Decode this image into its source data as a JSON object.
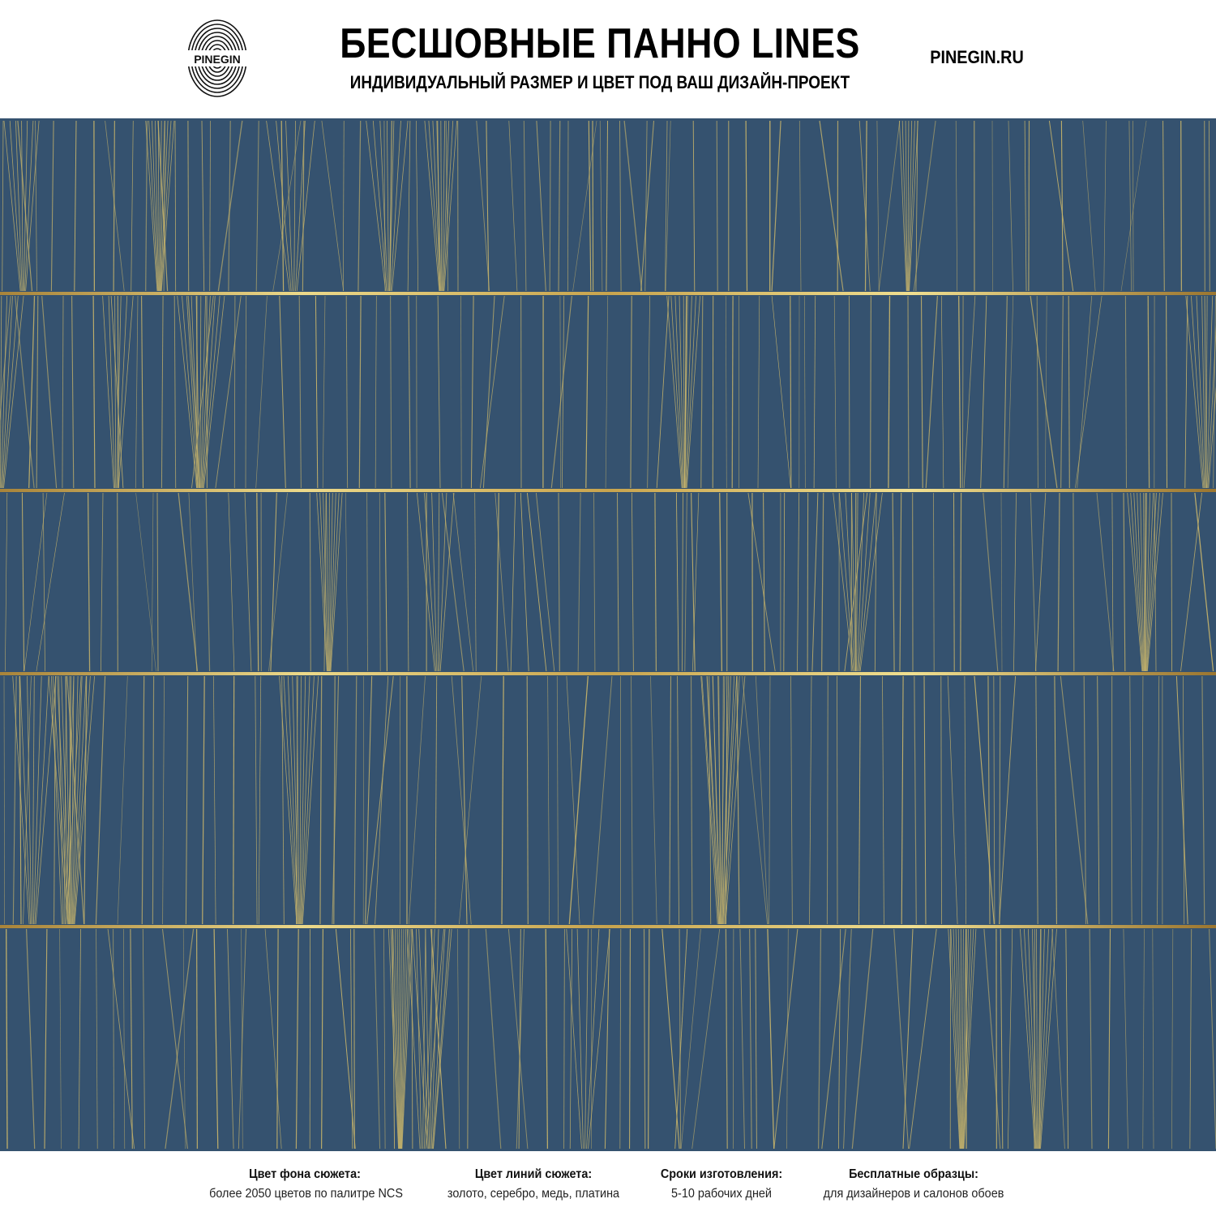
{
  "header": {
    "logo_text": "PINEGIN",
    "title": "БЕСШОВНЫЕ ПАННО LINES",
    "subtitle": "ИНДИВИДУАЛЬНЫЙ РАЗМЕР И ЦВЕТ ПОД ВАШ ДИЗАЙН-ПРОЕКТ",
    "site": "PINEGIN.RU"
  },
  "panel": {
    "background_color": "#35526f",
    "line_color": "#c9b56a",
    "band_line_color": "#e7d47c",
    "band_count": 5
  },
  "footer": {
    "items": [
      {
        "label": "Цвет фона сюжета:",
        "value": "более 2050 цветов по палитре NCS"
      },
      {
        "label": "Цвет линий сюжета:",
        "value": "золото, серебро, медь, платина"
      },
      {
        "label": "Сроки изготовления:",
        "value": "5-10 рабочих дней"
      },
      {
        "label": "Бесплатные образцы:",
        "value": "для дизайнеров и салонов обоев"
      }
    ]
  }
}
